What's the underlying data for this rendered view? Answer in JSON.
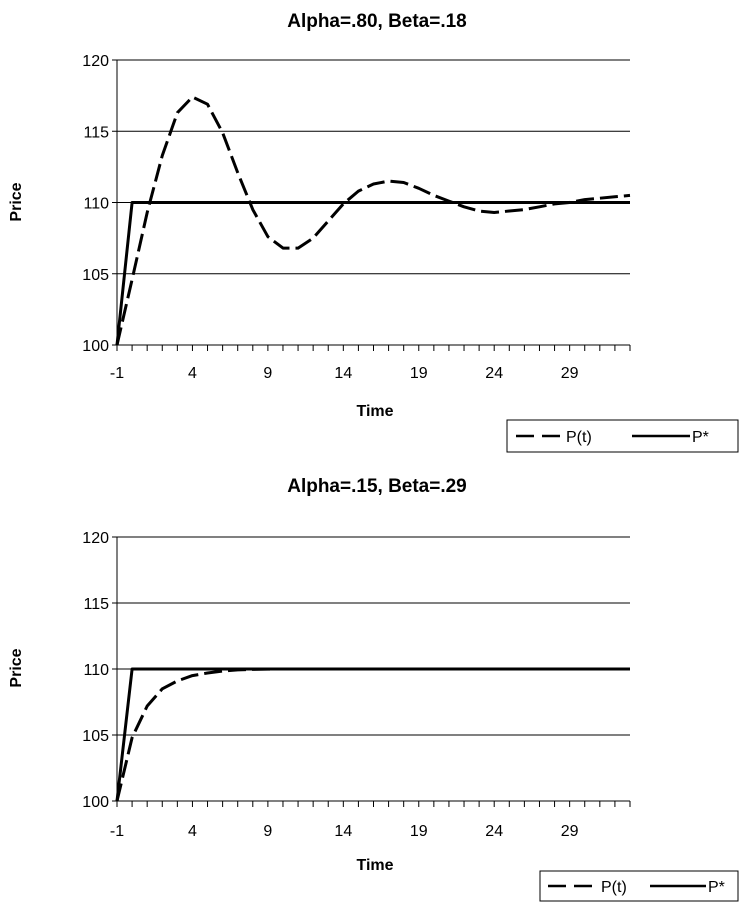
{
  "chart_data": [
    {
      "type": "line",
      "title": "Alpha=.80, Beta=.18",
      "xlabel": "Time",
      "ylabel": "Price",
      "xlim": [
        -1,
        33
      ],
      "ylim": [
        100,
        120
      ],
      "x_ticks": [
        -1,
        4,
        9,
        14,
        19,
        24,
        29
      ],
      "y_ticks": [
        100,
        105,
        110,
        115,
        120
      ],
      "grid": "horizontal",
      "legend": "bottom-right",
      "series": [
        {
          "name": "P(t)",
          "style": "dashed",
          "color": "#000000",
          "x": [
            -1,
            0,
            1,
            2,
            3,
            4,
            5,
            6,
            7,
            8,
            9,
            10,
            11,
            12,
            13,
            14,
            15,
            16,
            17,
            18,
            19,
            20,
            21,
            22,
            23,
            24,
            25,
            26,
            27,
            28,
            29,
            30,
            31,
            32,
            33
          ],
          "values": [
            100,
            104.6,
            109.3,
            113.3,
            116.3,
            117.4,
            116.9,
            114.9,
            112.1,
            109.5,
            107.6,
            106.8,
            106.8,
            107.5,
            108.7,
            109.9,
            110.8,
            111.3,
            111.5,
            111.4,
            111.0,
            110.5,
            110.1,
            109.7,
            109.4,
            109.3,
            109.4,
            109.5,
            109.7,
            109.9,
            110.0,
            110.2,
            110.3,
            110.4,
            110.5
          ]
        },
        {
          "name": "P*",
          "style": "solid",
          "color": "#000000",
          "x": [
            -1,
            0,
            33
          ],
          "values": [
            100,
            110,
            110
          ]
        }
      ]
    },
    {
      "type": "line",
      "title": "Alpha=.15, Beta=.29",
      "xlabel": "Time",
      "ylabel": "Price",
      "xlim": [
        -1,
        33
      ],
      "ylim": [
        100,
        120
      ],
      "x_ticks": [
        -1,
        4,
        9,
        14,
        19,
        24,
        29
      ],
      "y_ticks": [
        100,
        105,
        110,
        115,
        120
      ],
      "grid": "horizontal",
      "legend": "bottom-right",
      "series": [
        {
          "name": "P(t)",
          "style": "dashed",
          "color": "#000000",
          "x": [
            -1,
            0,
            1,
            2,
            3,
            4,
            5,
            6,
            7,
            8,
            9,
            10,
            12,
            14,
            16,
            18,
            20,
            22,
            24,
            26,
            28,
            30,
            32,
            33
          ],
          "values": [
            100,
            104.8,
            107.2,
            108.5,
            109.1,
            109.5,
            109.7,
            109.85,
            109.93,
            109.97,
            109.99,
            110,
            110,
            110,
            110,
            110,
            110,
            110,
            110,
            110,
            110,
            110,
            110,
            110
          ]
        },
        {
          "name": "P*",
          "style": "solid",
          "color": "#000000",
          "x": [
            -1,
            0,
            33
          ],
          "values": [
            100,
            110,
            110
          ]
        }
      ]
    }
  ]
}
